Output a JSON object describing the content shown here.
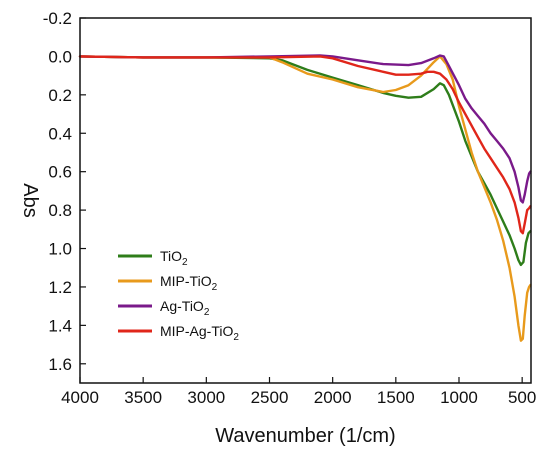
{
  "chart_data": {
    "type": "line",
    "xlabel": "Wavenumber (1/cm)",
    "ylabel": "Abs",
    "xlim": [
      4000,
      430
    ],
    "ylim": [
      -0.2,
      1.7
    ],
    "x_reversed": true,
    "y_reversed": true,
    "x_ticks": [
      4000,
      3500,
      3000,
      2500,
      2000,
      1500,
      1000,
      500
    ],
    "y_ticks": [
      -0.2,
      0.0,
      0.2,
      0.4,
      0.6,
      0.8,
      1.0,
      1.2,
      1.4,
      1.6
    ],
    "x_tick_labels": [
      "4000",
      "3500",
      "3000",
      "2500",
      "2000",
      "1500",
      "1000",
      "500"
    ],
    "y_tick_labels": [
      "-0.2",
      "0.0",
      "0.2",
      "0.4",
      "0.6",
      "0.8",
      "1.0",
      "1.2",
      "1.4",
      "1.6"
    ],
    "legend_placement": "bottom-left",
    "grid": false,
    "series": [
      {
        "name": "TiO2",
        "name_base": "TiO",
        "name_sub": "2",
        "name_suffix": "",
        "color": "#2e7d1a",
        "points": [
          [
            4000,
            0.0
          ],
          [
            3500,
            0.005
          ],
          [
            3000,
            0.005
          ],
          [
            2500,
            0.01
          ],
          [
            2400,
            0.02
          ],
          [
            2200,
            0.07
          ],
          [
            2000,
            0.11
          ],
          [
            1800,
            0.15
          ],
          [
            1600,
            0.19
          ],
          [
            1500,
            0.205
          ],
          [
            1400,
            0.215
          ],
          [
            1300,
            0.21
          ],
          [
            1200,
            0.17
          ],
          [
            1150,
            0.14
          ],
          [
            1120,
            0.15
          ],
          [
            1080,
            0.2
          ],
          [
            1000,
            0.34
          ],
          [
            950,
            0.44
          ],
          [
            900,
            0.52
          ],
          [
            850,
            0.6
          ],
          [
            800,
            0.66
          ],
          [
            750,
            0.72
          ],
          [
            700,
            0.79
          ],
          [
            650,
            0.86
          ],
          [
            600,
            0.93
          ],
          [
            560,
            1.0
          ],
          [
            530,
            1.06
          ],
          [
            510,
            1.085
          ],
          [
            490,
            1.07
          ],
          [
            470,
            0.97
          ],
          [
            450,
            0.92
          ],
          [
            435,
            0.91
          ]
        ]
      },
      {
        "name": "MIP-TiO2",
        "name_base": "MIP-TiO",
        "name_sub": "2",
        "name_suffix": "",
        "color": "#e89a1c",
        "points": [
          [
            4000,
            0.0
          ],
          [
            3500,
            0.005
          ],
          [
            3000,
            0.005
          ],
          [
            2500,
            0.005
          ],
          [
            2400,
            0.03
          ],
          [
            2200,
            0.09
          ],
          [
            2000,
            0.12
          ],
          [
            1800,
            0.16
          ],
          [
            1600,
            0.185
          ],
          [
            1500,
            0.175
          ],
          [
            1400,
            0.15
          ],
          [
            1300,
            0.1
          ],
          [
            1200,
            0.03
          ],
          [
            1150,
            0.0
          ],
          [
            1100,
            0.04
          ],
          [
            1050,
            0.12
          ],
          [
            1000,
            0.26
          ],
          [
            950,
            0.38
          ],
          [
            900,
            0.5
          ],
          [
            850,
            0.6
          ],
          [
            800,
            0.68
          ],
          [
            750,
            0.76
          ],
          [
            700,
            0.85
          ],
          [
            650,
            0.96
          ],
          [
            600,
            1.1
          ],
          [
            560,
            1.25
          ],
          [
            530,
            1.4
          ],
          [
            510,
            1.48
          ],
          [
            495,
            1.47
          ],
          [
            480,
            1.35
          ],
          [
            460,
            1.23
          ],
          [
            445,
            1.2
          ],
          [
            435,
            1.19
          ]
        ]
      },
      {
        "name": "Ag-TiO2",
        "name_base": "Ag-TiO",
        "name_sub": "2",
        "name_suffix": "",
        "color": "#7a1a8a",
        "points": [
          [
            4000,
            0.0
          ],
          [
            3500,
            0.005
          ],
          [
            3000,
            0.005
          ],
          [
            2500,
            0.0
          ],
          [
            2100,
            -0.005
          ],
          [
            2000,
            0.0
          ],
          [
            1800,
            0.02
          ],
          [
            1600,
            0.04
          ],
          [
            1400,
            0.045
          ],
          [
            1300,
            0.035
          ],
          [
            1200,
            0.01
          ],
          [
            1150,
            -0.005
          ],
          [
            1120,
            0.0
          ],
          [
            1080,
            0.05
          ],
          [
            1000,
            0.15
          ],
          [
            950,
            0.22
          ],
          [
            900,
            0.27
          ],
          [
            850,
            0.31
          ],
          [
            800,
            0.35
          ],
          [
            750,
            0.4
          ],
          [
            700,
            0.44
          ],
          [
            650,
            0.48
          ],
          [
            600,
            0.53
          ],
          [
            560,
            0.6
          ],
          [
            530,
            0.68
          ],
          [
            510,
            0.75
          ],
          [
            495,
            0.76
          ],
          [
            480,
            0.72
          ],
          [
            460,
            0.65
          ],
          [
            445,
            0.61
          ],
          [
            435,
            0.6
          ]
        ]
      },
      {
        "name": "MIP-Ag-TiO2",
        "name_base": "MIP-Ag-TiO",
        "name_sub": "2",
        "name_suffix": "",
        "color": "#e0261a",
        "points": [
          [
            4000,
            0.0
          ],
          [
            3500,
            0.005
          ],
          [
            3000,
            0.005
          ],
          [
            2500,
            0.005
          ],
          [
            2100,
            0.0
          ],
          [
            2000,
            0.01
          ],
          [
            1800,
            0.05
          ],
          [
            1600,
            0.08
          ],
          [
            1500,
            0.095
          ],
          [
            1400,
            0.095
          ],
          [
            1300,
            0.09
          ],
          [
            1250,
            0.08
          ],
          [
            1200,
            0.08
          ],
          [
            1150,
            0.09
          ],
          [
            1100,
            0.12
          ],
          [
            1050,
            0.17
          ],
          [
            1000,
            0.24
          ],
          [
            950,
            0.3
          ],
          [
            900,
            0.36
          ],
          [
            850,
            0.42
          ],
          [
            800,
            0.48
          ],
          [
            750,
            0.53
          ],
          [
            700,
            0.58
          ],
          [
            650,
            0.63
          ],
          [
            600,
            0.69
          ],
          [
            560,
            0.76
          ],
          [
            530,
            0.84
          ],
          [
            510,
            0.91
          ],
          [
            495,
            0.92
          ],
          [
            480,
            0.87
          ],
          [
            460,
            0.8
          ],
          [
            445,
            0.79
          ],
          [
            435,
            0.78
          ]
        ]
      }
    ]
  }
}
